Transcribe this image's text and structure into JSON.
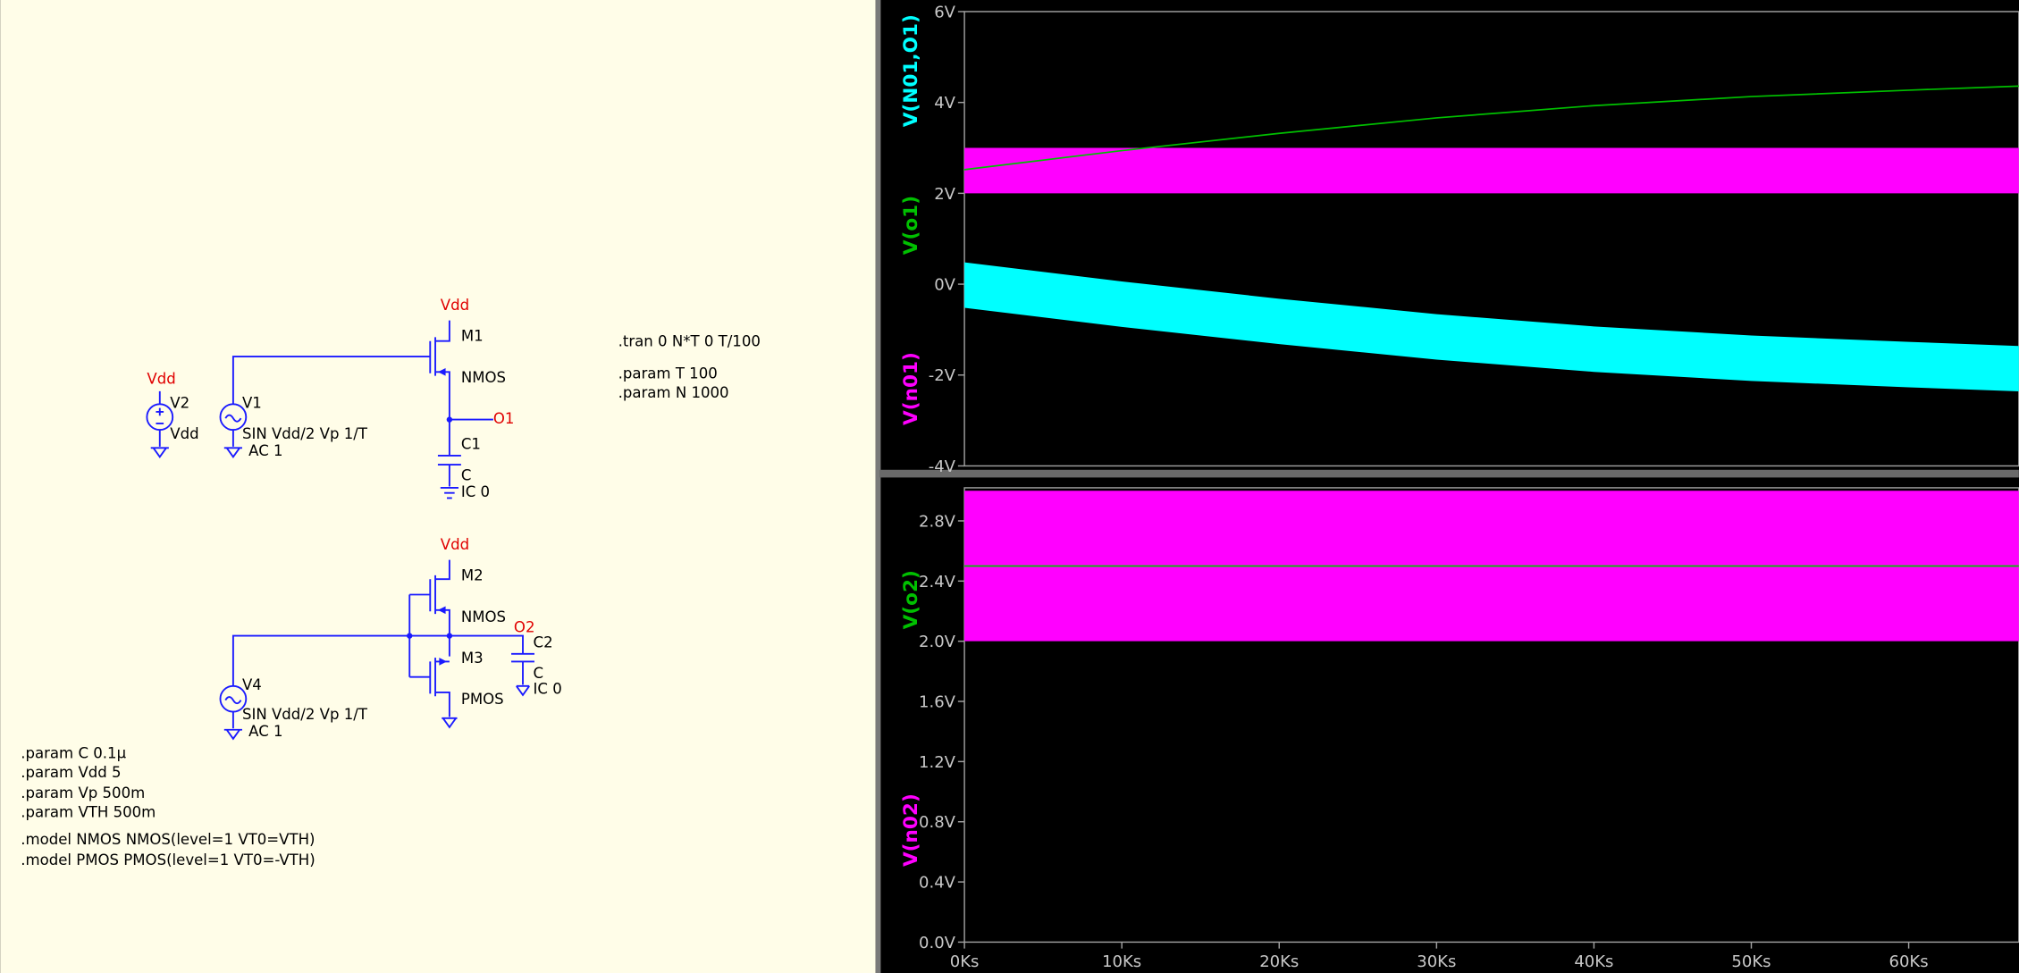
{
  "schematic": {
    "texts": [
      "Vdd",
      "M1",
      "NMOS",
      "O1",
      "C1",
      "C",
      "IC 0",
      "Vdd",
      "V2",
      "Vdd",
      "V1",
      "SIN Vdd/2 Vp 1/T",
      "AC 1",
      ".tran 0 N*T 0 T/100",
      ".param T 100",
      ".param N 1000",
      "Vdd",
      "M2",
      "NMOS",
      "O2",
      "C2",
      "C",
      "IC 0",
      "M3",
      "PMOS",
      "V4",
      "SIN Vdd/2 Vp 1/T",
      "AC 1",
      ".param C 0.1µ",
      ".param Vdd 5",
      ".param Vp 500m",
      ".param VTH 500m",
      ".model NMOS NMOS(level=1 VT0=VTH)",
      ".model PMOS PMOS(level=1 VT0=-VTH)"
    ]
  },
  "chart_data": [
    {
      "type": "line",
      "x": [
        0,
        10000,
        20000,
        30000,
        40000,
        50000,
        60000,
        67000
      ],
      "xlim": [
        0,
        67000
      ],
      "ylim": [
        -4,
        6
      ],
      "yticks": [
        {
          "value": 6,
          "label": "6V"
        },
        {
          "value": 4,
          "label": "4V"
        },
        {
          "value": 2,
          "label": "2V"
        },
        {
          "value": 0,
          "label": "0V"
        },
        {
          "value": -2,
          "label": "-2V"
        },
        {
          "value": -4,
          "label": "-4V"
        }
      ],
      "series": [
        {
          "name": "V(N01,O1)",
          "color": "#00ffff",
          "upper": [
            0.48,
            0.06,
            -0.32,
            -0.66,
            -0.93,
            -1.13,
            -1.27,
            -1.36
          ],
          "lower": [
            -0.52,
            -0.94,
            -1.32,
            -1.66,
            -1.93,
            -2.13,
            -2.27,
            -2.36
          ]
        },
        {
          "name": "V(o1)",
          "color": "#00c000",
          "values": [
            2.52,
            2.94,
            3.32,
            3.66,
            3.93,
            4.13,
            4.27,
            4.36
          ]
        },
        {
          "name": "V(n01)",
          "color": "#ff00ff",
          "upper": [
            3,
            3,
            3,
            3,
            3,
            3,
            3,
            3
          ],
          "lower": [
            2,
            2,
            2,
            2,
            2,
            2,
            2,
            2
          ]
        }
      ]
    },
    {
      "type": "line",
      "x": [
        0,
        67000
      ],
      "xlim": [
        0,
        67000
      ],
      "ylim": [
        0,
        3.02
      ],
      "yticks": [
        {
          "value": 0,
          "label": "0.0V"
        },
        {
          "value": 0.4,
          "label": "0.4V"
        },
        {
          "value": 0.8,
          "label": "0.8V"
        },
        {
          "value": 1.2,
          "label": "1.2V"
        },
        {
          "value": 1.6,
          "label": "1.6V"
        },
        {
          "value": 2.0,
          "label": "2.0V"
        },
        {
          "value": 2.4,
          "label": "2.4V"
        },
        {
          "value": 2.8,
          "label": "2.8V"
        }
      ],
      "xticks": [
        {
          "value": 0,
          "label": "0Ks"
        },
        {
          "value": 10000,
          "label": "10Ks"
        },
        {
          "value": 20000,
          "label": "20Ks"
        },
        {
          "value": 30000,
          "label": "30Ks"
        },
        {
          "value": 40000,
          "label": "40Ks"
        },
        {
          "value": 50000,
          "label": "50Ks"
        },
        {
          "value": 60000,
          "label": "60Ks"
        }
      ],
      "series": [
        {
          "name": "V(o2)",
          "color": "#00c000",
          "values": [
            2.5,
            2.5
          ]
        },
        {
          "name": "V(n02)",
          "color": "#ff00ff",
          "upper": [
            3,
            3
          ],
          "lower": [
            2,
            2
          ]
        }
      ]
    }
  ]
}
